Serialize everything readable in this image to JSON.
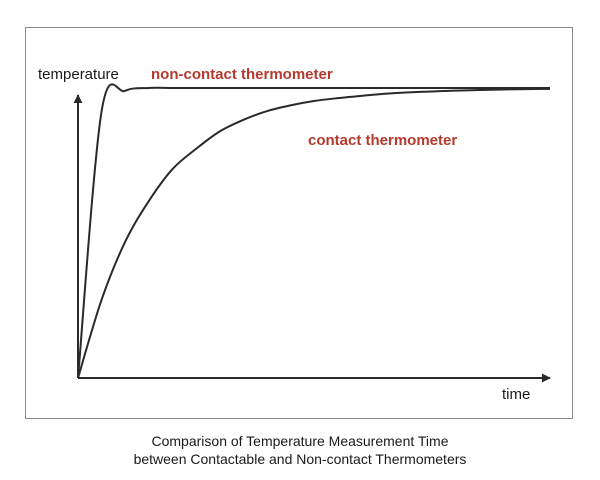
{
  "chart_data": {
    "type": "line",
    "title": "",
    "xlabel": "time",
    "ylabel": "temperature",
    "grid": false,
    "axis_ticks": false,
    "x": [
      0,
      0.5,
      1,
      1.5,
      2,
      2.5,
      3,
      3.5,
      4,
      4.5,
      5,
      5.5,
      6,
      6.5,
      7,
      7.5,
      8,
      8.5,
      9,
      9.5,
      10
    ],
    "series": [
      {
        "name": "non-contact thermometer",
        "values": [
          0,
          0.92,
          0.99,
          1.0,
          1.0,
          1.0,
          1.0,
          1.0,
          1.0,
          1.0,
          1.0,
          1.0,
          1.0,
          1.0,
          1.0,
          1.0,
          1.0,
          1.0,
          1.0,
          1.0,
          1.0
        ],
        "color": "#2a2a2a",
        "label_color": "#b5392e"
      },
      {
        "name": "contact thermometer",
        "values": [
          0,
          0.27,
          0.47,
          0.61,
          0.72,
          0.79,
          0.85,
          0.89,
          0.92,
          0.94,
          0.955,
          0.965,
          0.973,
          0.98,
          0.985,
          0.988,
          0.991,
          0.993,
          0.995,
          0.996,
          0.997
        ],
        "color": "#2a2a2a",
        "label_color": "#b5392e"
      }
    ]
  },
  "caption": {
    "line1": "Comparison of Temperature Measurement Time",
    "line2": "between Contactable and Non-contact Thermometers"
  }
}
